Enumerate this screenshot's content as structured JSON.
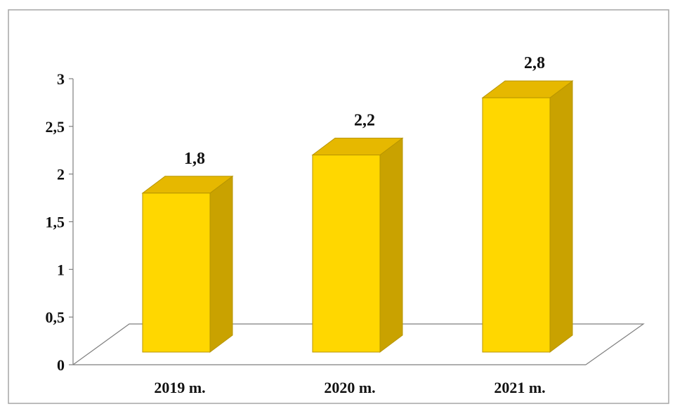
{
  "chart_data": {
    "type": "bar",
    "style": "3d-column",
    "categories": [
      "2019 m.",
      "2020 m.",
      "2021 m."
    ],
    "values": [
      1.8,
      2.2,
      2.8
    ],
    "data_labels": [
      "1,8",
      "2,2",
      "2,8"
    ],
    "ylim": [
      0,
      3
    ],
    "yticks": [
      0,
      0.5,
      1,
      1.5,
      2,
      2.5,
      3
    ],
    "ytick_labels": [
      "0",
      "0,5",
      "1",
      "1,5",
      "2",
      "2,5",
      "3"
    ],
    "title": "",
    "xlabel": "",
    "ylabel": "",
    "grid": false,
    "legend": "none",
    "colors": {
      "bar_front": "#FFD700",
      "bar_top": "#E6B800",
      "bar_side": "#C9A200",
      "bar_edge": "#B89500",
      "axis": "#7F7F7F",
      "frame": "#A6A6A6"
    }
  }
}
